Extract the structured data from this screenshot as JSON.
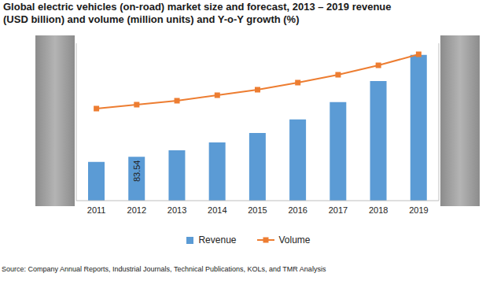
{
  "chart_data": {
    "type": "bar",
    "title": "Global electric vehicles (on-road) market size and forecast, 2013 – 2019 revenue (USD billion) and volume (million units) and Y-o-Y growth (%)",
    "source": "Source: Company Annual Reports, Industrial Journals, Technical Publications, KOLs, and TMR Analysis",
    "categories": [
      "2011",
      "2012",
      "2013",
      "2014",
      "2015",
      "2016",
      "2017",
      "2018",
      "2019"
    ],
    "series": [
      {
        "name": "Revenue",
        "type": "bar",
        "color": "#5b9bd5",
        "values": [
          74,
          83.54,
          96,
          111,
          129,
          155,
          188,
          228,
          278
        ],
        "value_labels": [
          null,
          "83.54",
          null,
          null,
          null,
          null,
          null,
          null,
          null
        ]
      },
      {
        "name": "Volume",
        "type": "line",
        "color": "#ed7d31",
        "marker": "square",
        "axis": "y2",
        "values": [
          5.85,
          6.1,
          6.35,
          6.7,
          7.05,
          7.5,
          8.0,
          8.6,
          9.3
        ]
      }
    ],
    "ylim": [
      0,
      300
    ],
    "y2lim": [
      0,
      10
    ],
    "tick_labels": "x",
    "grid": false
  }
}
